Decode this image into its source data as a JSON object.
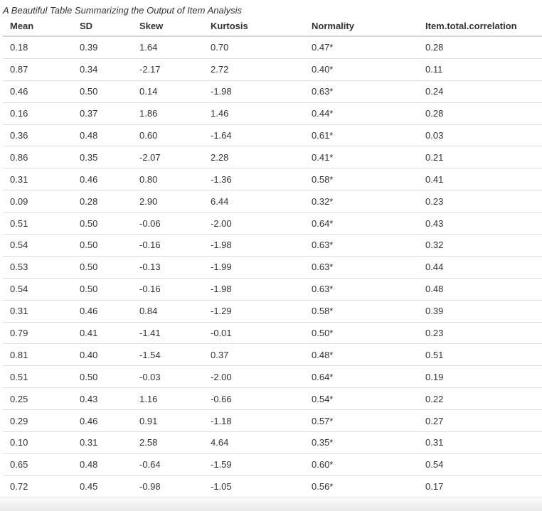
{
  "chart_data": {
    "type": "table",
    "title": "A Beautiful Table Summarizing the Output of Item Analysis",
    "columns": [
      "Mean",
      "SD",
      "Skew",
      "Kurtosis",
      "Normality",
      "Item.total.correlation"
    ],
    "rows": [
      [
        "0.18",
        "0.39",
        "1.64",
        "0.70",
        "0.47*",
        "0.28"
      ],
      [
        "0.87",
        "0.34",
        "-2.17",
        "2.72",
        "0.40*",
        "0.11"
      ],
      [
        "0.46",
        "0.50",
        "0.14",
        "-1.98",
        "0.63*",
        "0.24"
      ],
      [
        "0.16",
        "0.37",
        "1.86",
        "1.46",
        "0.44*",
        "0.28"
      ],
      [
        "0.36",
        "0.48",
        "0.60",
        "-1.64",
        "0.61*",
        "0.03"
      ],
      [
        "0.86",
        "0.35",
        "-2.07",
        "2.28",
        "0.41*",
        "0.21"
      ],
      [
        "0.31",
        "0.46",
        "0.80",
        "-1.36",
        "0.58*",
        "0.41"
      ],
      [
        "0.09",
        "0.28",
        "2.90",
        "6.44",
        "0.32*",
        "0.23"
      ],
      [
        "0.51",
        "0.50",
        "-0.06",
        "-2.00",
        "0.64*",
        "0.43"
      ],
      [
        "0.54",
        "0.50",
        "-0.16",
        "-1.98",
        "0.63*",
        "0.32"
      ],
      [
        "0.53",
        "0.50",
        "-0.13",
        "-1.99",
        "0.63*",
        "0.44"
      ],
      [
        "0.54",
        "0.50",
        "-0.16",
        "-1.98",
        "0.63*",
        "0.48"
      ],
      [
        "0.31",
        "0.46",
        "0.84",
        "-1.29",
        "0.58*",
        "0.39"
      ],
      [
        "0.79",
        "0.41",
        "-1.41",
        "-0.01",
        "0.50*",
        "0.23"
      ],
      [
        "0.81",
        "0.40",
        "-1.54",
        "0.37",
        "0.48*",
        "0.51"
      ],
      [
        "0.51",
        "0.50",
        "-0.03",
        "-2.00",
        "0.64*",
        "0.19"
      ],
      [
        "0.25",
        "0.43",
        "1.16",
        "-0.66",
        "0.54*",
        "0.22"
      ],
      [
        "0.29",
        "0.46",
        "0.91",
        "-1.18",
        "0.57*",
        "0.27"
      ],
      [
        "0.10",
        "0.31",
        "2.58",
        "4.64",
        "0.35*",
        "0.31"
      ],
      [
        "0.65",
        "0.48",
        "-0.64",
        "-1.59",
        "0.60*",
        "0.54"
      ],
      [
        "0.72",
        "0.45",
        "-0.98",
        "-1.05",
        "0.56*",
        "0.17"
      ]
    ],
    "significance_marker": "*",
    "layout_hints": {
      "grid": "horizontal-rules-only",
      "header_rule": "2px",
      "row_rule": "1px",
      "alignment": "left"
    }
  },
  "colors": {
    "text": "#333333",
    "row_border": "#dddddd",
    "header_border": "#d2d2d2",
    "background": "#ffffff",
    "footer_gradient_top": "#fcfcfc",
    "footer_gradient_bottom": "#e8e8e8"
  }
}
